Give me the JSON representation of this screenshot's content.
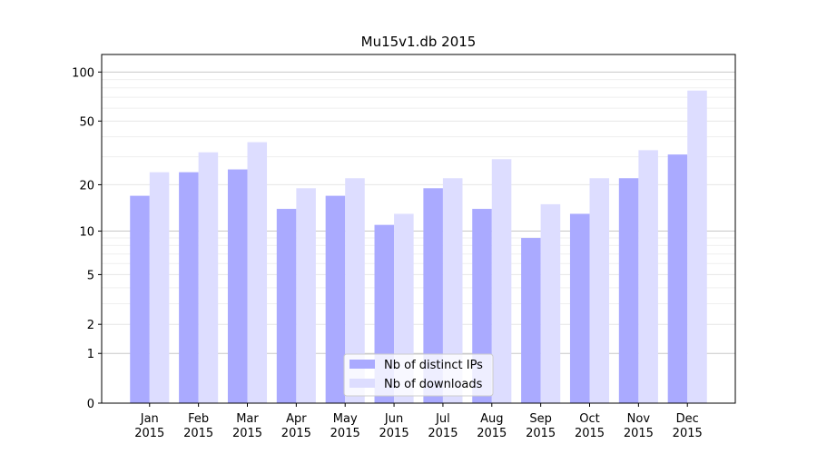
{
  "chart_data": {
    "type": "bar",
    "title": "Mu15v1.db 2015",
    "categories": [
      "Jan\n2015",
      "Feb\n2015",
      "Mar\n2015",
      "Apr\n2015",
      "May\n2015",
      "Jun\n2015",
      "Jul\n2015",
      "Aug\n2015",
      "Sep\n2015",
      "Oct\n2015",
      "Nov\n2015",
      "Dec\n2015"
    ],
    "series": [
      {
        "name": "Nb of distinct IPs",
        "color": "#aaaaff",
        "values": [
          17,
          24,
          25,
          14,
          17,
          11,
          19,
          14,
          9,
          13,
          22,
          31
        ]
      },
      {
        "name": "Nb of downloads",
        "color": "#ddddff",
        "values": [
          24,
          32,
          37,
          19,
          22,
          13,
          22,
          29,
          15,
          22,
          33,
          77
        ]
      }
    ],
    "yscale": "log1p",
    "ylim": [
      0,
      128
    ],
    "yticks": [
      0,
      1,
      2,
      5,
      10,
      20,
      50,
      100
    ],
    "minor_yticks": [
      3,
      4,
      6,
      7,
      8,
      9,
      30,
      40,
      60,
      70,
      80,
      90
    ],
    "grid": true,
    "legend": "lower center"
  }
}
